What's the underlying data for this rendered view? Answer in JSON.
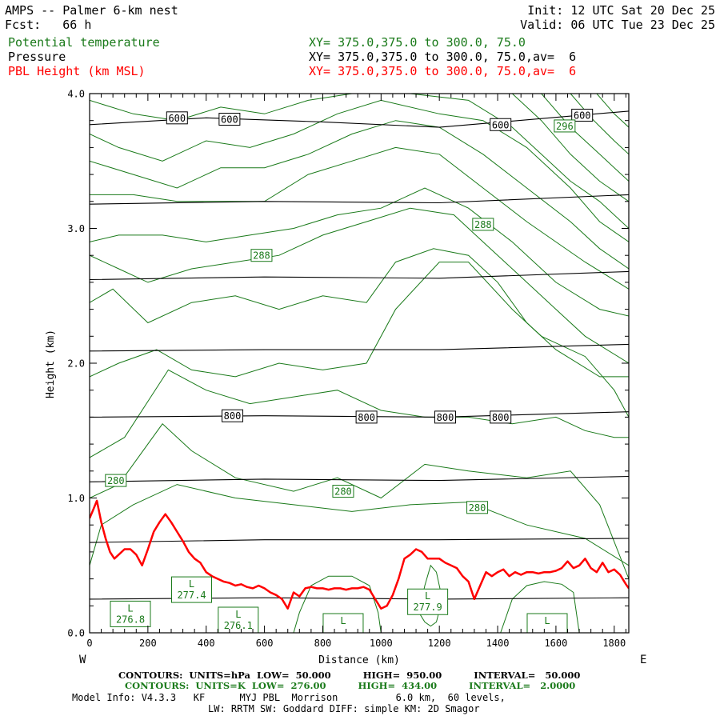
{
  "header": {
    "title": "AMPS -- Palmer 6-km nest",
    "fcst": "Fcst:   66 h",
    "init": "Init: 12 UTC Sat 20 Dec 25",
    "valid": "Valid: 06 UTC Tue 23 Dec 25",
    "fields": [
      {
        "name": "Potential temperature",
        "xy": "XY= 375.0,375.0 to 300.0, 75.0",
        "color": "#1a7a1a"
      },
      {
        "name": "Pressure",
        "xy": "XY= 375.0,375.0 to 300.0, 75.0,av=  6",
        "color": "#000000"
      },
      {
        "name": "PBL Height (km MSL)",
        "xy": "XY= 375.0,375.0 to 300.0, 75.0,av=  6",
        "color": "#ff0000"
      }
    ]
  },
  "chart_data": {
    "type": "line",
    "xlabel": "Distance (km)",
    "ylabel": "Height (km)",
    "xlim": [
      0,
      1850
    ],
    "ylim": [
      0,
      4.0
    ],
    "x_ticks": [
      0,
      200,
      400,
      600,
      800,
      1000,
      1200,
      1400,
      1600,
      1800
    ],
    "y_ticks": [
      "0.0",
      "1.0",
      "2.0",
      "3.0",
      "4.0"
    ],
    "x_tick_labels": [
      "0",
      "200",
      "400",
      "600",
      "800",
      "1000",
      "1200",
      "1400",
      "1600",
      "1800"
    ],
    "left_end_label": "W",
    "right_end_label": "E",
    "colors": {
      "pressure": "#000000",
      "theta": "#1a7a1a",
      "pbl": "#ff0000"
    },
    "pressure_contours": [
      {
        "x": [
          0,
          400,
          800,
          1200,
          1850
        ],
        "y": [
          3.77,
          3.82,
          3.79,
          3.75,
          3.87
        ]
      },
      {
        "x": [
          0,
          600,
          1200,
          1850
        ],
        "y": [
          3.18,
          3.2,
          3.19,
          3.25
        ]
      },
      {
        "x": [
          0,
          600,
          1200,
          1850
        ],
        "y": [
          2.62,
          2.64,
          2.63,
          2.68
        ]
      },
      {
        "x": [
          0,
          600,
          1200,
          1850
        ],
        "y": [
          2.09,
          2.1,
          2.1,
          2.14
        ]
      },
      {
        "x": [
          0,
          600,
          1200,
          1850
        ],
        "y": [
          1.6,
          1.61,
          1.6,
          1.64
        ]
      },
      {
        "x": [
          0,
          600,
          1200,
          1850
        ],
        "y": [
          1.12,
          1.14,
          1.13,
          1.16
        ]
      },
      {
        "x": [
          0,
          600,
          1200,
          1850
        ],
        "y": [
          0.67,
          0.69,
          0.69,
          0.7
        ]
      },
      {
        "x": [
          0,
          600,
          1200,
          1850
        ],
        "y": [
          0.25,
          0.26,
          0.25,
          0.26
        ]
      }
    ],
    "pressure_labels": [
      {
        "text": "600",
        "x": 300,
        "y": 3.82
      },
      {
        "text": "600",
        "x": 480,
        "y": 3.81
      },
      {
        "text": "600",
        "x": 1410,
        "y": 3.77
      },
      {
        "text": "600",
        "x": 1690,
        "y": 3.84
      },
      {
        "text": "800",
        "x": 490,
        "y": 1.61
      },
      {
        "text": "800",
        "x": 950,
        "y": 1.6
      },
      {
        "text": "800",
        "x": 1220,
        "y": 1.6
      },
      {
        "text": "800",
        "x": 1410,
        "y": 1.6
      }
    ],
    "theta_contours": [
      {
        "x": [
          0,
          40,
          150,
          300,
          500,
          700,
          900,
          1100,
          1300,
          1500,
          1700,
          1850
        ],
        "y": [
          0.5,
          0.8,
          0.95,
          1.1,
          1.0,
          0.95,
          0.9,
          0.95,
          0.97,
          0.8,
          0.7,
          0.5
        ]
      },
      {
        "x": [
          0,
          100,
          250,
          350,
          500,
          700,
          850,
          1000,
          1150,
          1300,
          1500,
          1650,
          1750,
          1850
        ],
        "y": [
          1.0,
          1.1,
          1.55,
          1.35,
          1.15,
          1.05,
          1.15,
          1.0,
          1.25,
          1.2,
          1.15,
          1.2,
          0.95,
          0.4
        ]
      },
      {
        "x": [
          0,
          120,
          270,
          400,
          550,
          700,
          850,
          1000,
          1150,
          1300,
          1450,
          1600,
          1700,
          1800,
          1850
        ],
        "y": [
          1.3,
          1.45,
          1.95,
          1.8,
          1.7,
          1.75,
          1.8,
          1.65,
          1.6,
          1.6,
          1.55,
          1.6,
          1.5,
          1.45,
          1.45
        ]
      },
      {
        "x": [
          0,
          100,
          230,
          350,
          500,
          650,
          800,
          950,
          1050,
          1200,
          1300,
          1450,
          1550,
          1700,
          1800,
          1850
        ],
        "y": [
          1.9,
          2.0,
          2.1,
          1.95,
          1.9,
          2.0,
          1.95,
          2.0,
          2.4,
          2.75,
          2.75,
          2.4,
          2.2,
          2.05,
          1.8,
          1.6
        ]
      },
      {
        "x": [
          0,
          80,
          200,
          350,
          500,
          650,
          800,
          950,
          1050,
          1180,
          1300,
          1400,
          1500,
          1600,
          1750,
          1850
        ],
        "y": [
          2.45,
          2.55,
          2.3,
          2.45,
          2.5,
          2.4,
          2.5,
          2.45,
          2.75,
          2.85,
          2.8,
          2.6,
          2.3,
          2.1,
          1.9,
          1.9
        ]
      },
      {
        "x": [
          0,
          100,
          200,
          350,
          500,
          650,
          800,
          950,
          1100,
          1250,
          1350,
          1450,
          1550,
          1700,
          1850
        ],
        "y": [
          2.8,
          2.7,
          2.6,
          2.7,
          2.75,
          2.8,
          2.95,
          3.05,
          3.15,
          3.1,
          2.9,
          2.7,
          2.5,
          2.2,
          2.0
        ]
      },
      {
        "x": [
          0,
          100,
          250,
          400,
          550,
          700,
          850,
          1000,
          1150,
          1300,
          1450,
          1600,
          1750,
          1850
        ],
        "y": [
          2.9,
          2.95,
          2.95,
          2.9,
          2.95,
          3.0,
          3.1,
          3.15,
          3.3,
          3.15,
          2.9,
          2.6,
          2.4,
          2.35
        ]
      },
      {
        "x": [
          0,
          150,
          300,
          450,
          600,
          750,
          900,
          1050,
          1200,
          1350,
          1500,
          1600,
          1700,
          1850
        ],
        "y": [
          3.25,
          3.25,
          3.2,
          3.2,
          3.2,
          3.4,
          3.5,
          3.6,
          3.55,
          3.3,
          3.05,
          2.9,
          2.75,
          2.55
        ]
      },
      {
        "x": [
          0,
          150,
          300,
          450,
          600,
          750,
          900,
          1050,
          1200,
          1350,
          1500,
          1650,
          1750,
          1850
        ],
        "y": [
          3.5,
          3.4,
          3.3,
          3.45,
          3.45,
          3.55,
          3.7,
          3.8,
          3.75,
          3.55,
          3.3,
          3.05,
          2.85,
          2.7
        ]
      },
      {
        "x": [
          0,
          100,
          250,
          400,
          550,
          700,
          850,
          1000,
          1200,
          1350,
          1500,
          1650,
          1750,
          1850
        ],
        "y": [
          3.7,
          3.6,
          3.5,
          3.65,
          3.6,
          3.7,
          3.85,
          3.95,
          3.85,
          3.8,
          3.6,
          3.3,
          3.05,
          2.9
        ]
      },
      {
        "x": [
          0,
          150,
          300,
          450,
          600,
          750,
          900,
          1100,
          1300,
          1450,
          1550,
          1650,
          1750,
          1850
        ],
        "y": [
          3.95,
          3.85,
          3.8,
          3.9,
          3.85,
          3.95,
          4.0,
          4.0,
          3.95,
          3.75,
          3.55,
          3.35,
          3.2,
          3.0
        ]
      },
      {
        "x": [
          1450,
          1550,
          1650,
          1750,
          1850
        ],
        "y": [
          4.0,
          3.8,
          3.55,
          3.35,
          3.2
        ]
      },
      {
        "x": [
          1550,
          1650,
          1750,
          1850
        ],
        "y": [
          4.0,
          3.75,
          3.55,
          3.35
        ]
      },
      {
        "x": [
          1650,
          1730,
          1800,
          1850
        ],
        "y": [
          4.0,
          3.8,
          3.65,
          3.55
        ]
      },
      {
        "x": [
          1740,
          1800,
          1850
        ],
        "y": [
          4.0,
          3.85,
          3.75
        ]
      }
    ],
    "theta_closed_contours": [
      {
        "x": [
          700,
          720,
          760,
          820,
          900,
          960,
          990,
          1000,
          700
        ],
        "y": [
          0.0,
          0.15,
          0.35,
          0.42,
          0.42,
          0.35,
          0.15,
          0.0,
          0.0
        ]
      },
      {
        "x": [
          1130,
          1150,
          1170,
          1190,
          1210,
          1190,
          1170,
          1150,
          1130
        ],
        "y": [
          0.15,
          0.35,
          0.5,
          0.45,
          0.25,
          0.08,
          0.05,
          0.08,
          0.15
        ]
      },
      {
        "x": [
          1410,
          1450,
          1500,
          1560,
          1620,
          1660,
          1680,
          1410
        ],
        "y": [
          0.0,
          0.25,
          0.35,
          0.38,
          0.36,
          0.3,
          0.0,
          0.0
        ]
      }
    ],
    "theta_labels": [
      {
        "text": "296",
        "x": 1630,
        "y": 3.76
      },
      {
        "text": "288",
        "x": 1350,
        "y": 3.03
      },
      {
        "text": "288",
        "x": 590,
        "y": 2.8
      },
      {
        "text": "280",
        "x": 90,
        "y": 1.13
      },
      {
        "text": "280",
        "x": 870,
        "y": 1.05
      },
      {
        "text": "280",
        "x": 1330,
        "y": 0.93
      }
    ],
    "lows": [
      {
        "label": "L",
        "value": "276.8",
        "x": 140,
        "y": 0.14
      },
      {
        "label": "L",
        "value": "277.4",
        "x": 350,
        "y": 0.32
      },
      {
        "label": "L",
        "value": "276.1",
        "x": 510,
        "y": 0.07
      },
      {
        "label": "L",
        "value": "",
        "x": 870,
        "y": 0.05
      },
      {
        "label": "L",
        "value": "277.9",
        "x": 1160,
        "y": 0.23
      },
      {
        "label": "L",
        "value": "",
        "x": 1570,
        "y": 0.05
      }
    ],
    "pbl_height": {
      "x": [
        0,
        10,
        25,
        40,
        55,
        70,
        85,
        100,
        120,
        140,
        160,
        180,
        200,
        220,
        240,
        260,
        280,
        300,
        320,
        340,
        360,
        380,
        400,
        420,
        440,
        460,
        480,
        500,
        520,
        540,
        560,
        580,
        600,
        620,
        640,
        660,
        680,
        700,
        720,
        740,
        760,
        780,
        800,
        820,
        840,
        860,
        880,
        900,
        920,
        940,
        960,
        980,
        1000,
        1020,
        1040,
        1060,
        1080,
        1100,
        1120,
        1140,
        1160,
        1180,
        1200,
        1220,
        1240,
        1260,
        1280,
        1300,
        1320,
        1340,
        1360,
        1380,
        1400,
        1420,
        1440,
        1460,
        1480,
        1500,
        1520,
        1540,
        1560,
        1580,
        1600,
        1620,
        1640,
        1660,
        1680,
        1700,
        1720,
        1740,
        1760,
        1780,
        1800,
        1820,
        1840,
        1850
      ],
      "y": [
        0.85,
        0.9,
        0.98,
        0.82,
        0.7,
        0.6,
        0.55,
        0.58,
        0.62,
        0.62,
        0.58,
        0.5,
        0.62,
        0.75,
        0.82,
        0.88,
        0.82,
        0.75,
        0.68,
        0.6,
        0.55,
        0.52,
        0.45,
        0.42,
        0.4,
        0.38,
        0.37,
        0.35,
        0.36,
        0.34,
        0.33,
        0.35,
        0.33,
        0.3,
        0.28,
        0.25,
        0.18,
        0.3,
        0.27,
        0.33,
        0.34,
        0.33,
        0.33,
        0.32,
        0.33,
        0.33,
        0.32,
        0.33,
        0.33,
        0.34,
        0.32,
        0.25,
        0.18,
        0.2,
        0.28,
        0.4,
        0.55,
        0.58,
        0.62,
        0.6,
        0.55,
        0.55,
        0.55,
        0.52,
        0.5,
        0.48,
        0.42,
        0.38,
        0.25,
        0.35,
        0.45,
        0.42,
        0.45,
        0.47,
        0.42,
        0.45,
        0.43,
        0.45,
        0.45,
        0.44,
        0.45,
        0.45,
        0.46,
        0.48,
        0.53,
        0.48,
        0.5,
        0.55,
        0.48,
        0.45,
        0.52,
        0.45,
        0.47,
        0.43,
        0.36,
        0.33
      ]
    }
  },
  "footer": {
    "line1_black": "CONTOURS:  UNITS=hPa  LOW=  50.000          HIGH=  950.00          INTERVAL=   50.000",
    "line2_green": "CONTOURS:  UNITS=K  LOW=  276.00          HIGH=  434.00          INTERVAL=   2.0000",
    "line3": "Model Info: V4.3.3   KF      MYJ PBL  Morrison          6.0 km,  60 levels,",
    "line4": "LW: RRTM SW: Goddard DIFF: simple KM: 2D Smagor"
  }
}
